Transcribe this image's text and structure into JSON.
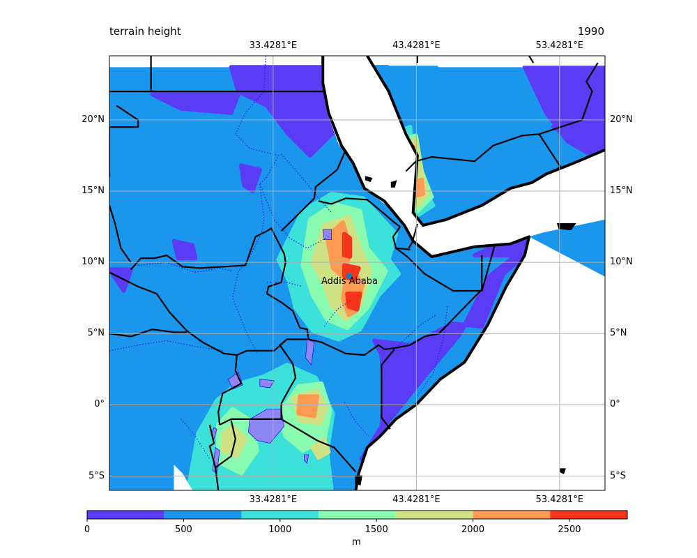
{
  "title_left": "terrain height",
  "title_right": "1990",
  "city": {
    "name": "Addis Ababa",
    "lon": 38.74,
    "lat": 9.03
  },
  "map": {
    "lon_range": [
      22.0,
      56.6
    ],
    "lat_range": [
      -6.0,
      24.5
    ],
    "lon_ticks": [
      {
        "value": 33.4281,
        "label": "33.4281°E"
      },
      {
        "value": 43.4281,
        "label": "43.4281°E"
      },
      {
        "value": 53.4281,
        "label": "53.4281°E"
      }
    ],
    "lat_ticks": [
      {
        "value": 20,
        "label": "20°N"
      },
      {
        "value": 15,
        "label": "15°N"
      },
      {
        "value": 10,
        "label": "10°N"
      },
      {
        "value": 5,
        "label": "5°N"
      },
      {
        "value": 0,
        "label": "0°"
      },
      {
        "value": -5,
        "label": "5°S"
      }
    ],
    "gridlines": true
  },
  "colorbar": {
    "unit_label": "m",
    "range": [
      0,
      2800
    ],
    "levels": [
      0,
      400,
      800,
      1200,
      1600,
      2000,
      2400,
      2800
    ],
    "colors": [
      "#5b3cf5",
      "#1a97ec",
      "#3ce2d9",
      "#88fbb0",
      "#cfe283",
      "#fe9a52",
      "#f4351b"
    ],
    "tick_values": [
      0,
      500,
      1000,
      1500,
      2000,
      2500
    ],
    "tick_labels": [
      "0",
      "500",
      "1000",
      "1500",
      "2000",
      "2500"
    ]
  },
  "colors": {
    "sea": "#ffffff",
    "coastline": "#000000",
    "borders": "#000000",
    "rivers": "#1a1ae6",
    "lakes": "#8f86f5",
    "city_marker": "#1f77b4",
    "grid": "#b0b0b0"
  }
}
